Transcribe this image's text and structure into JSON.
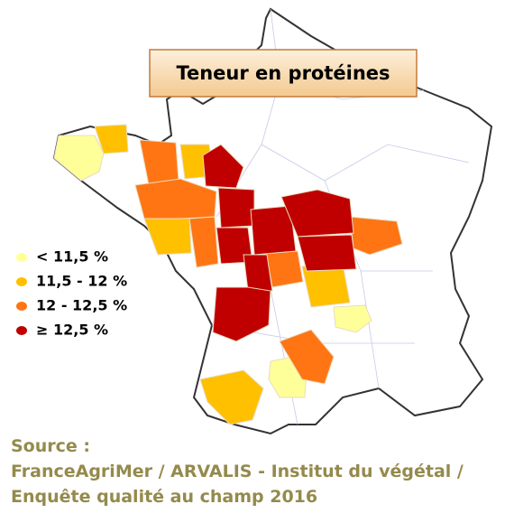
{
  "title": "Teneur en protéines",
  "legend": [
    {
      "label": "< 11,5 %",
      "color": "#ffff99"
    },
    {
      "label": "11,5 - 12 %",
      "color": "#ffc000"
    },
    {
      "label": "12 - 12,5 %",
      "color": "#ff7514"
    },
    {
      "label": "≥ 12,5 %",
      "color": "#c00000"
    }
  ],
  "source": [
    "Source :",
    "FranceAgriMer / ARVALIS - Institut du végétal /",
    "Enquête qualité au champ 2016"
  ]
}
